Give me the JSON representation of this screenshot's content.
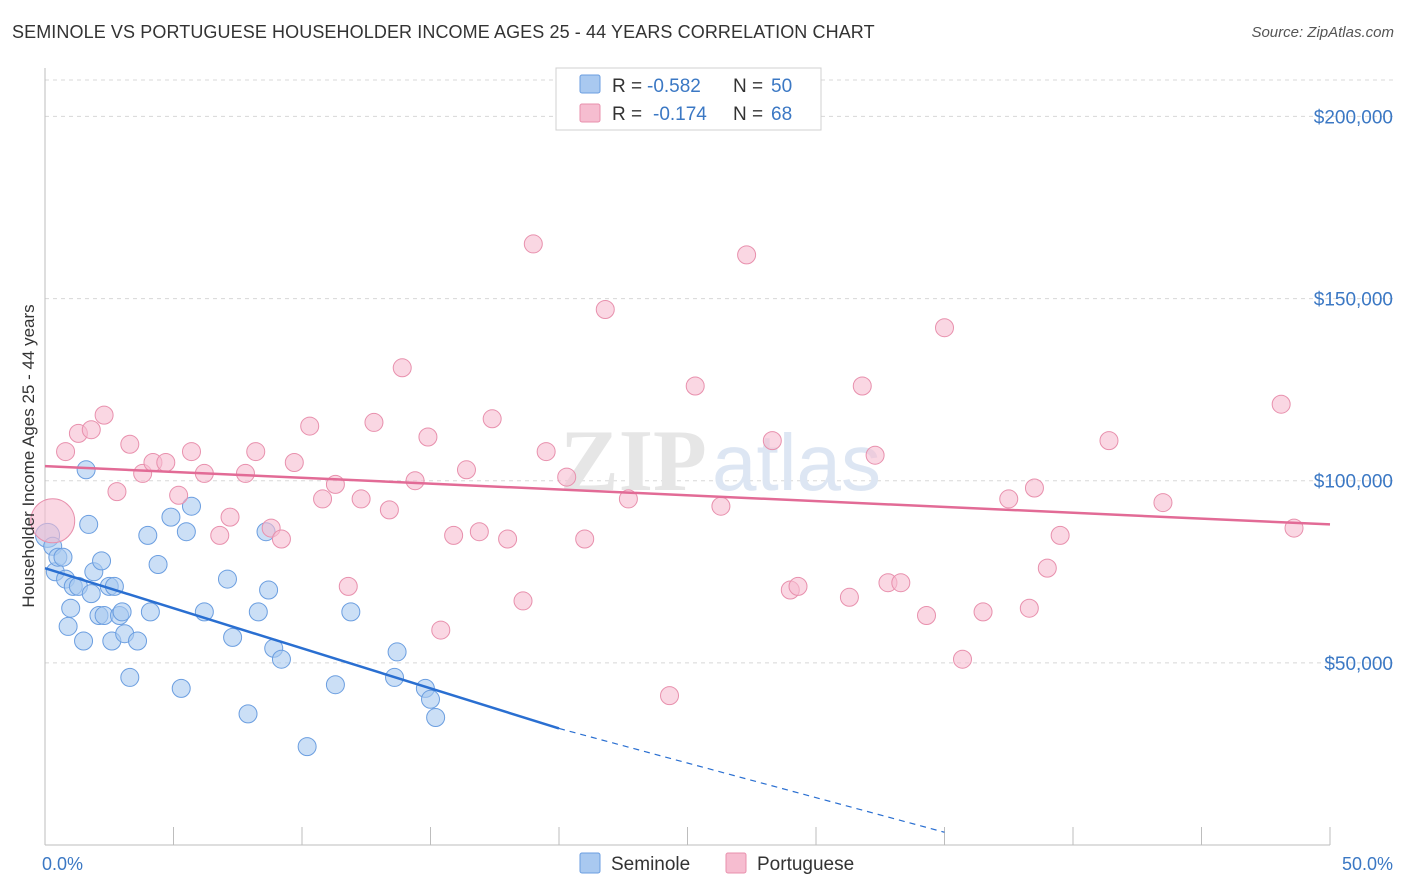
{
  "title": "SEMINOLE VS PORTUGUESE HOUSEHOLDER INCOME AGES 25 - 44 YEARS CORRELATION CHART",
  "source": "Source: ZipAtlas.com",
  "watermark": {
    "zip": "ZIP",
    "atlas": "atlas"
  },
  "colors": {
    "seminole_fill": "#a9c9f0",
    "seminole_stroke": "#6b9ee0",
    "seminole_line": "#2a6fd1",
    "portuguese_fill": "#f6bdd0",
    "portuguese_stroke": "#e890ad",
    "portuguese_line": "#e26b96",
    "tick_text": "#3b78c4",
    "grid": "#d8d8d8"
  },
  "legend_top": [
    {
      "series": "Seminole",
      "r_label": "R =",
      "r_value": "-0.582",
      "n_label": "N =",
      "n_value": "50"
    },
    {
      "series": "Portuguese",
      "r_label": "R =",
      "r_value": "-0.174",
      "n_label": "N =",
      "n_value": "68"
    }
  ],
  "chart_data": {
    "type": "scatter",
    "title": "SEMINOLE VS PORTUGUESE HOUSEHOLDER INCOME AGES 25 - 44 YEARS CORRELATION CHART",
    "xlabel": "",
    "ylabel": "Householder Income Ages 25 - 44 years",
    "xlim": [
      0,
      50
    ],
    "ylim": [
      0,
      210000
    ],
    "x_tick_labels": [
      "0.0%",
      "50.0%"
    ],
    "y_ticks": [
      50000,
      100000,
      150000,
      200000
    ],
    "y_tick_labels": [
      "$50,000",
      "$100,000",
      "$150,000",
      "$200,000"
    ],
    "grid": true,
    "legend_position": "top-center",
    "series": [
      {
        "name": "Seminole",
        "trend": {
          "x": [
            0,
            20
          ],
          "y": [
            76000,
            32000
          ],
          "dashed_extension_to": [
            35,
            3500
          ]
        },
        "points": [
          [
            0.1,
            85000
          ],
          [
            0.3,
            82000
          ],
          [
            0.4,
            75000
          ],
          [
            0.5,
            79000
          ],
          [
            0.7,
            79000
          ],
          [
            0.8,
            73000
          ],
          [
            0.9,
            60000
          ],
          [
            1.0,
            65000
          ],
          [
            1.1,
            71000
          ],
          [
            1.3,
            71000
          ],
          [
            1.5,
            56000
          ],
          [
            1.6,
            103000
          ],
          [
            1.7,
            88000
          ],
          [
            1.8,
            69000
          ],
          [
            1.9,
            75000
          ],
          [
            2.1,
            63000
          ],
          [
            2.2,
            78000
          ],
          [
            2.3,
            63000
          ],
          [
            2.5,
            71000
          ],
          [
            2.6,
            56000
          ],
          [
            2.7,
            71000
          ],
          [
            2.9,
            63000
          ],
          [
            3.0,
            64000
          ],
          [
            3.1,
            58000
          ],
          [
            3.3,
            46000
          ],
          [
            3.6,
            56000
          ],
          [
            4.0,
            85000
          ],
          [
            4.1,
            64000
          ],
          [
            4.4,
            77000
          ],
          [
            4.9,
            90000
          ],
          [
            5.3,
            43000
          ],
          [
            5.5,
            86000
          ],
          [
            5.7,
            93000
          ],
          [
            6.2,
            64000
          ],
          [
            7.1,
            73000
          ],
          [
            7.3,
            57000
          ],
          [
            7.9,
            36000
          ],
          [
            8.3,
            64000
          ],
          [
            8.6,
            86000
          ],
          [
            8.7,
            70000
          ],
          [
            8.9,
            54000
          ],
          [
            9.2,
            51000
          ],
          [
            10.2,
            27000
          ],
          [
            11.3,
            44000
          ],
          [
            11.9,
            64000
          ],
          [
            13.6,
            46000
          ],
          [
            13.7,
            53000
          ],
          [
            14.8,
            43000
          ],
          [
            15.0,
            40000
          ],
          [
            15.2,
            35000
          ]
        ]
      },
      {
        "name": "Portuguese",
        "trend": {
          "x": [
            0,
            50
          ],
          "y": [
            104000,
            88000
          ]
        },
        "points": [
          [
            0.3,
            89000
          ],
          [
            0.8,
            108000
          ],
          [
            1.3,
            113000
          ],
          [
            1.8,
            114000
          ],
          [
            2.3,
            118000
          ],
          [
            2.8,
            97000
          ],
          [
            3.3,
            110000
          ],
          [
            3.8,
            102000
          ],
          [
            4.2,
            105000
          ],
          [
            4.7,
            105000
          ],
          [
            5.2,
            96000
          ],
          [
            5.7,
            108000
          ],
          [
            6.2,
            102000
          ],
          [
            6.8,
            85000
          ],
          [
            7.2,
            90000
          ],
          [
            7.8,
            102000
          ],
          [
            8.2,
            108000
          ],
          [
            8.8,
            87000
          ],
          [
            9.2,
            84000
          ],
          [
            9.7,
            105000
          ],
          [
            10.3,
            115000
          ],
          [
            10.8,
            95000
          ],
          [
            11.3,
            99000
          ],
          [
            11.8,
            71000
          ],
          [
            12.3,
            95000
          ],
          [
            12.8,
            116000
          ],
          [
            13.4,
            92000
          ],
          [
            13.9,
            131000
          ],
          [
            14.4,
            100000
          ],
          [
            14.9,
            112000
          ],
          [
            15.4,
            59000
          ],
          [
            15.9,
            85000
          ],
          [
            16.4,
            103000
          ],
          [
            16.9,
            86000
          ],
          [
            17.4,
            117000
          ],
          [
            18.0,
            84000
          ],
          [
            18.6,
            67000
          ],
          [
            19.0,
            165000
          ],
          [
            19.5,
            108000
          ],
          [
            20.3,
            101000
          ],
          [
            21.0,
            84000
          ],
          [
            21.8,
            147000
          ],
          [
            22.7,
            95000
          ],
          [
            24.3,
            41000
          ],
          [
            25.3,
            126000
          ],
          [
            26.3,
            93000
          ],
          [
            27.3,
            162000
          ],
          [
            28.3,
            111000
          ],
          [
            29.0,
            70000
          ],
          [
            29.3,
            71000
          ],
          [
            31.3,
            68000
          ],
          [
            31.8,
            126000
          ],
          [
            32.3,
            107000
          ],
          [
            32.8,
            72000
          ],
          [
            33.3,
            72000
          ],
          [
            34.3,
            63000
          ],
          [
            35.0,
            142000
          ],
          [
            35.7,
            51000
          ],
          [
            36.5,
            64000
          ],
          [
            37.5,
            95000
          ],
          [
            38.3,
            65000
          ],
          [
            38.5,
            98000
          ],
          [
            39.0,
            76000
          ],
          [
            39.5,
            85000
          ],
          [
            41.4,
            111000
          ],
          [
            43.5,
            94000
          ],
          [
            48.1,
            121000
          ],
          [
            48.6,
            87000
          ]
        ]
      }
    ]
  }
}
